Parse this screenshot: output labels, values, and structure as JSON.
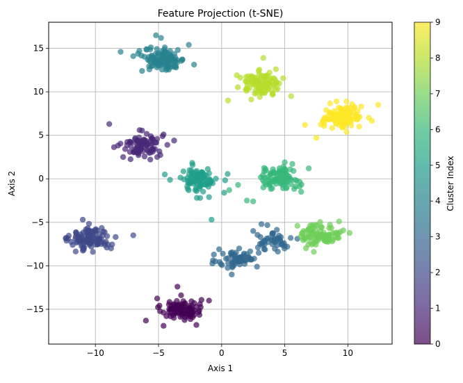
{
  "chart_data": {
    "type": "scatter",
    "title": "Feature Projection (t-SNE)",
    "xlabel": "Axis 1",
    "ylabel": "Axis 2",
    "xlim": [
      -13.7,
      13.5
    ],
    "ylim": [
      -19,
      18
    ],
    "xticks": [
      -10,
      -5,
      0,
      5,
      10
    ],
    "yticks": [
      -15,
      -10,
      -5,
      0,
      5,
      10,
      15
    ],
    "grid": true,
    "marker_opacity": 0.7,
    "colorbar": {
      "label": "Cluster Index",
      "min": 0,
      "max": 9,
      "ticks": [
        0,
        1,
        2,
        3,
        4,
        5,
        6,
        7,
        8,
        9
      ],
      "colormap": "viridis",
      "stops": [
        "#440154",
        "#482878",
        "#3e4989",
        "#31688e",
        "#26828e",
        "#1f9e89",
        "#35b779",
        "#6ece58",
        "#b5de2b",
        "#fde725"
      ]
    },
    "clusters": [
      {
        "cluster_index": 0,
        "center": [
          -3.2,
          -15.0
        ],
        "n": 95,
        "points": [
          [
            -6.0,
            -16.3
          ],
          [
            -1.0,
            -14.0
          ],
          [
            -2.0,
            -16.8
          ],
          [
            -3.5,
            -12.4
          ],
          [
            -4.6,
            -16.9
          ]
        ]
      },
      {
        "cluster_index": 1,
        "center": [
          -6.3,
          3.9
        ],
        "n": 85,
        "points": [
          [
            -8.9,
            6.3
          ],
          [
            -4.3,
            3.9
          ],
          [
            -4.6,
            5.1
          ],
          [
            -7.8,
            2.5
          ],
          [
            -6.5,
            5.6
          ],
          [
            -5.1,
            2.5
          ]
        ]
      },
      {
        "cluster_index": 2,
        "center": [
          -10.4,
          -6.9
        ],
        "n": 110,
        "points": [
          [
            -12.3,
            -6.8
          ],
          [
            -7.0,
            -6.5
          ],
          [
            -10.2,
            -8.4
          ],
          [
            -11.0,
            -4.7
          ],
          [
            -11.8,
            -7.6
          ]
        ]
      },
      {
        "cluster_index": 3,
        "center": [
          1.3,
          -9.2
        ],
        "n": 60,
        "points": [
          [
            -0.5,
            -9.5
          ],
          [
            0.8,
            -11.0
          ],
          [
            -0.2,
            -8.1
          ],
          [
            2.8,
            -10.1
          ]
        ]
      },
      {
        "cluster_index": 3,
        "center": [
          4.0,
          -7.0
        ],
        "n": 45,
        "points": [
          [
            6.0,
            -6.9
          ],
          [
            5.2,
            -7.8
          ],
          [
            2.5,
            -6.0
          ],
          [
            3.4,
            -7.1
          ]
        ]
      },
      {
        "cluster_index": 4,
        "center": [
          -4.5,
          13.7
        ],
        "n": 115,
        "points": [
          [
            -8.0,
            14.6
          ],
          [
            -6.3,
            12.4
          ],
          [
            -4.8,
            16.2
          ],
          [
            -2.6,
            15.4
          ],
          [
            -5.2,
            16.5
          ],
          [
            -7.0,
            14.1
          ]
        ]
      },
      {
        "cluster_index": 5,
        "center": [
          -1.8,
          -0.1
        ],
        "n": 85,
        "points": [
          [
            -4.5,
            0.5
          ],
          [
            0.2,
            -1.6
          ],
          [
            -0.8,
            -4.7
          ],
          [
            -1.7,
            -2.2
          ],
          [
            -2.3,
            1.6
          ],
          [
            -1.0,
            -2.1
          ]
        ]
      },
      {
        "cluster_index": 6,
        "center": [
          4.5,
          0.1
        ],
        "n": 85,
        "points": [
          [
            0.6,
            -1.3
          ],
          [
            1.3,
            -0.7
          ],
          [
            2.0,
            -2.5
          ],
          [
            2.5,
            -2.6
          ],
          [
            3.3,
            -1.0
          ],
          [
            6.9,
            1.2
          ],
          [
            6.3,
            -1.5
          ],
          [
            5.0,
            1.9
          ]
        ]
      },
      {
        "cluster_index": 7,
        "center": [
          7.9,
          -6.4
        ],
        "n": 90,
        "points": [
          [
            6.0,
            -5.4
          ],
          [
            9.3,
            -4.9
          ],
          [
            7.3,
            -8.4
          ],
          [
            9.4,
            -6.1
          ]
        ]
      },
      {
        "cluster_index": 8,
        "center": [
          3.1,
          10.9
        ],
        "n": 105,
        "points": [
          [
            0.5,
            9.0
          ],
          [
            3.3,
            13.9
          ],
          [
            5.5,
            9.5
          ],
          [
            1.2,
            11.9
          ],
          [
            4.3,
            12.6
          ]
        ]
      },
      {
        "cluster_index": 9,
        "center": [
          9.6,
          7.1
        ],
        "n": 110,
        "points": [
          [
            6.6,
            6.2
          ],
          [
            12.4,
            8.5
          ],
          [
            7.5,
            4.7
          ],
          [
            9.1,
            8.9
          ],
          [
            10.9,
            6.0
          ]
        ]
      }
    ]
  }
}
